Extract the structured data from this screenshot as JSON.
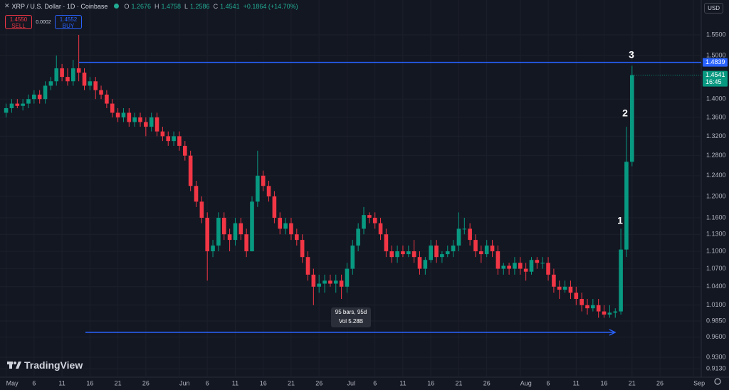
{
  "header": {
    "symbol": "XRP / U.S. Dollar · 1D · Coinbase",
    "ohlc_labels": [
      "O",
      "H",
      "L",
      "C"
    ],
    "change": "+0.1864 (+14.70%)"
  },
  "trade": {
    "sell_price": "1.4550",
    "sell_label": "SELL",
    "spread": "0.0002",
    "buy_price": "1.4552",
    "buy_label": "BUY"
  },
  "currency": "USD",
  "brand": "TradingView",
  "chart_data": {
    "type": "candlestick",
    "up_color": "#089981",
    "down_color": "#f23645",
    "line_color": "#2962ff",
    "log_scale": true,
    "grid": true,
    "ylim": [
      0.899,
      1.638
    ],
    "yticks": [
      {
        "value": 1.55,
        "label": "1.5500"
      },
      {
        "value": 1.5,
        "label": "1.5000"
      },
      {
        "value": 1.4,
        "label": "1.4000"
      },
      {
        "value": 1.36,
        "label": "1.3600"
      },
      {
        "value": 1.32,
        "label": "1.3200"
      },
      {
        "value": 1.28,
        "label": "1.2800"
      },
      {
        "value": 1.24,
        "label": "1.2400"
      },
      {
        "value": 1.2,
        "label": "1.2000"
      },
      {
        "value": 1.16,
        "label": "1.1600"
      },
      {
        "value": 1.13,
        "label": "1.1300"
      },
      {
        "value": 1.1,
        "label": "1.1000"
      },
      {
        "value": 1.07,
        "label": "1.0700"
      },
      {
        "value": 1.04,
        "label": "1.0400"
      },
      {
        "value": 1.01,
        "label": "1.0100"
      },
      {
        "value": 0.985,
        "label": "0.9850"
      },
      {
        "value": 0.96,
        "label": "0.9600"
      },
      {
        "value": 0.93,
        "label": "0.9300"
      },
      {
        "value": 0.913,
        "label": "0.9130"
      }
    ],
    "categories": [
      "May",
      null,
      null,
      null,
      null,
      "6",
      null,
      null,
      null,
      null,
      "11",
      null,
      null,
      null,
      null,
      "16",
      null,
      null,
      null,
      null,
      "21",
      null,
      null,
      null,
      null,
      "26",
      null,
      null,
      null,
      null,
      null,
      "Jun",
      null,
      null,
      null,
      null,
      "6",
      null,
      null,
      null,
      null,
      "11",
      null,
      null,
      null,
      null,
      "16",
      null,
      null,
      null,
      null,
      "21",
      null,
      null,
      null,
      null,
      "26",
      null,
      null,
      null,
      null,
      "Jul",
      null,
      null,
      null,
      null,
      "6",
      null,
      null,
      null,
      null,
      "11",
      null,
      null,
      null,
      null,
      "16",
      null,
      null,
      null,
      null,
      "21",
      null,
      null,
      null,
      null,
      "26",
      null,
      null,
      null,
      null,
      null,
      "Aug",
      null,
      null,
      null,
      null,
      "6",
      null,
      null,
      null,
      null,
      "11",
      null,
      null,
      null,
      null,
      "16",
      null,
      null,
      null,
      null,
      "21",
      null,
      null,
      null,
      null,
      "26",
      null,
      null,
      null,
      null,
      null,
      "Sep"
    ],
    "candles": [
      [
        1.37,
        1.39,
        1.36,
        1.38
      ],
      [
        1.38,
        1.4,
        1.37,
        1.39
      ],
      [
        1.39,
        1.4,
        1.38,
        1.385
      ],
      [
        1.385,
        1.4,
        1.375,
        1.39
      ],
      [
        1.39,
        1.41,
        1.38,
        1.4
      ],
      [
        1.4,
        1.42,
        1.39,
        1.41
      ],
      [
        1.41,
        1.42,
        1.39,
        1.4
      ],
      [
        1.4,
        1.44,
        1.39,
        1.43
      ],
      [
        1.43,
        1.45,
        1.42,
        1.44
      ],
      [
        1.44,
        1.5,
        1.43,
        1.47
      ],
      [
        1.47,
        1.48,
        1.44,
        1.45
      ],
      [
        1.45,
        1.47,
        1.43,
        1.44
      ],
      [
        1.44,
        1.49,
        1.43,
        1.47
      ],
      [
        1.47,
        1.55,
        1.44,
        1.46
      ],
      [
        1.46,
        1.47,
        1.42,
        1.43
      ],
      [
        1.43,
        1.45,
        1.42,
        1.44
      ],
      [
        1.44,
        1.45,
        1.4,
        1.42
      ],
      [
        1.42,
        1.43,
        1.4,
        1.41
      ],
      [
        1.41,
        1.42,
        1.38,
        1.39
      ],
      [
        1.39,
        1.4,
        1.36,
        1.37
      ],
      [
        1.37,
        1.38,
        1.35,
        1.36
      ],
      [
        1.36,
        1.38,
        1.35,
        1.37
      ],
      [
        1.37,
        1.38,
        1.34,
        1.35
      ],
      [
        1.35,
        1.37,
        1.34,
        1.36
      ],
      [
        1.36,
        1.37,
        1.34,
        1.35
      ],
      [
        1.35,
        1.36,
        1.32,
        1.34
      ],
      [
        1.34,
        1.37,
        1.33,
        1.36
      ],
      [
        1.36,
        1.37,
        1.32,
        1.33
      ],
      [
        1.33,
        1.34,
        1.31,
        1.32
      ],
      [
        1.32,
        1.33,
        1.3,
        1.31
      ],
      [
        1.31,
        1.33,
        1.3,
        1.32
      ],
      [
        1.32,
        1.33,
        1.29,
        1.3
      ],
      [
        1.3,
        1.31,
        1.27,
        1.28
      ],
      [
        1.28,
        1.29,
        1.21,
        1.22
      ],
      [
        1.22,
        1.23,
        1.18,
        1.19
      ],
      [
        1.19,
        1.2,
        1.15,
        1.16
      ],
      [
        1.16,
        1.17,
        1.05,
        1.1
      ],
      [
        1.1,
        1.12,
        1.09,
        1.11
      ],
      [
        1.11,
        1.17,
        1.1,
        1.16
      ],
      [
        1.16,
        1.17,
        1.12,
        1.13
      ],
      [
        1.13,
        1.14,
        1.1,
        1.12
      ],
      [
        1.12,
        1.16,
        1.11,
        1.15
      ],
      [
        1.15,
        1.16,
        1.12,
        1.13
      ],
      [
        1.13,
        1.14,
        1.09,
        1.1
      ],
      [
        1.1,
        1.2,
        1.1,
        1.19
      ],
      [
        1.19,
        1.29,
        1.18,
        1.24
      ],
      [
        1.24,
        1.25,
        1.21,
        1.22
      ],
      [
        1.22,
        1.23,
        1.19,
        1.2
      ],
      [
        1.2,
        1.21,
        1.15,
        1.16
      ],
      [
        1.16,
        1.17,
        1.13,
        1.14
      ],
      [
        1.14,
        1.16,
        1.13,
        1.15
      ],
      [
        1.15,
        1.16,
        1.12,
        1.13
      ],
      [
        1.13,
        1.14,
        1.11,
        1.12
      ],
      [
        1.12,
        1.13,
        1.08,
        1.09
      ],
      [
        1.09,
        1.1,
        1.05,
        1.06
      ],
      [
        1.06,
        1.07,
        1.01,
        1.04
      ],
      [
        1.04,
        1.06,
        1.03,
        1.045
      ],
      [
        1.045,
        1.06,
        1.03,
        1.05
      ],
      [
        1.05,
        1.06,
        1.04,
        1.045
      ],
      [
        1.045,
        1.06,
        1.03,
        1.05
      ],
      [
        1.05,
        1.06,
        1.02,
        1.04
      ],
      [
        1.04,
        1.08,
        1.03,
        1.07
      ],
      [
        1.07,
        1.12,
        1.06,
        1.11
      ],
      [
        1.11,
        1.15,
        1.1,
        1.14
      ],
      [
        1.14,
        1.18,
        1.13,
        1.165
      ],
      [
        1.165,
        1.17,
        1.15,
        1.16
      ],
      [
        1.16,
        1.17,
        1.14,
        1.15
      ],
      [
        1.15,
        1.16,
        1.12,
        1.13
      ],
      [
        1.13,
        1.14,
        1.09,
        1.1
      ],
      [
        1.1,
        1.11,
        1.08,
        1.09
      ],
      [
        1.09,
        1.11,
        1.08,
        1.1
      ],
      [
        1.1,
        1.11,
        1.09,
        1.095
      ],
      [
        1.095,
        1.11,
        1.09,
        1.1
      ],
      [
        1.1,
        1.12,
        1.08,
        1.09
      ],
      [
        1.09,
        1.1,
        1.06,
        1.07
      ],
      [
        1.07,
        1.09,
        1.06,
        1.085
      ],
      [
        1.085,
        1.12,
        1.08,
        1.11
      ],
      [
        1.11,
        1.12,
        1.08,
        1.09
      ],
      [
        1.09,
        1.1,
        1.08,
        1.095
      ],
      [
        1.095,
        1.11,
        1.09,
        1.1
      ],
      [
        1.1,
        1.12,
        1.09,
        1.11
      ],
      [
        1.11,
        1.17,
        1.1,
        1.14
      ],
      [
        1.14,
        1.16,
        1.13,
        1.14
      ],
      [
        1.14,
        1.15,
        1.11,
        1.12
      ],
      [
        1.12,
        1.13,
        1.09,
        1.1
      ],
      [
        1.1,
        1.11,
        1.08,
        1.095
      ],
      [
        1.095,
        1.12,
        1.09,
        1.11
      ],
      [
        1.11,
        1.12,
        1.09,
        1.1
      ],
      [
        1.1,
        1.11,
        1.06,
        1.07
      ],
      [
        1.07,
        1.08,
        1.06,
        1.075
      ],
      [
        1.075,
        1.08,
        1.06,
        1.07
      ],
      [
        1.07,
        1.09,
        1.06,
        1.08
      ],
      [
        1.08,
        1.09,
        1.06,
        1.07
      ],
      [
        1.07,
        1.08,
        1.05,
        1.065
      ],
      [
        1.065,
        1.09,
        1.06,
        1.085
      ],
      [
        1.085,
        1.09,
        1.07,
        1.08
      ],
      [
        1.08,
        1.09,
        1.07,
        1.08
      ],
      [
        1.08,
        1.09,
        1.05,
        1.06
      ],
      [
        1.06,
        1.07,
        1.03,
        1.04
      ],
      [
        1.04,
        1.05,
        1.02,
        1.035
      ],
      [
        1.035,
        1.05,
        1.03,
        1.04
      ],
      [
        1.04,
        1.05,
        1.02,
        1.03
      ],
      [
        1.03,
        1.04,
        1.01,
        1.02
      ],
      [
        1.02,
        1.03,
        1.0,
        1.01
      ],
      [
        1.01,
        1.02,
        0.995,
        1.005
      ],
      [
        1.005,
        1.02,
        1.0,
        1.01
      ],
      [
        1.01,
        1.02,
        0.99,
        1.0
      ],
      [
        1.0,
        1.01,
        0.99,
        0.995
      ],
      [
        0.995,
        1.01,
        0.99,
        0.998
      ],
      [
        0.998,
        1.005,
        0.99,
        1.0
      ],
      [
        1.0,
        1.14,
        0.995,
        1.103
      ],
      [
        1.103,
        1.34,
        1.09,
        1.2676
      ],
      [
        1.2676,
        1.4758,
        1.2586,
        1.4541
      ],
      null,
      null,
      null,
      null,
      null,
      null,
      null,
      null,
      null,
      null,
      null
    ],
    "hline": 1.4839,
    "last_time": "16:45",
    "annotations": [
      "1",
      "2",
      "3"
    ],
    "measure": {
      "bars": "95 bars, 95d",
      "volume": "Vol 5.28B"
    }
  }
}
